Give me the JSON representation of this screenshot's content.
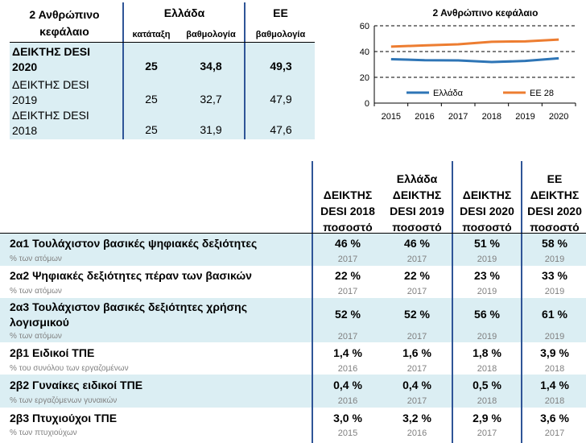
{
  "top_table": {
    "heading": "2 Ανθρώπινο κεφάλαιο",
    "group_greece": "Ελλάδα",
    "group_eu": "ΕΕ",
    "col_rank": "κατάταξη",
    "col_score_gr": "βαθμολογία",
    "col_score_eu": "βαθμολογία",
    "rows": [
      {
        "label": "ΔΕΙΚΤΗΣ DESI 2020",
        "rank": "25",
        "score": "34,8",
        "eu": "49,3"
      },
      {
        "label": "ΔΕΙΚΤΗΣ DESI 2019",
        "rank": "25",
        "score": "32,7",
        "eu": "47,9"
      },
      {
        "label": "ΔΕΙΚΤΗΣ DESI 2018",
        "rank": "25",
        "score": "31,9",
        "eu": "47,6"
      }
    ]
  },
  "colors": {
    "greece_line": "#2e75b6",
    "eu_line": "#ed7d31",
    "band": "#dbeef3",
    "divider": "#2f5597"
  },
  "chart_data": {
    "type": "line",
    "title": "2 Ανθρώπινο κεφάλαιο",
    "x": [
      "2015",
      "2016",
      "2017",
      "2018",
      "2019",
      "2020"
    ],
    "series": [
      {
        "name": "Ελλάδα",
        "values": [
          34.1,
          33.3,
          33.1,
          31.9,
          32.7,
          34.8
        ]
      },
      {
        "name": "ΕΕ 28",
        "values": [
          43.8,
          44.8,
          45.6,
          47.6,
          47.9,
          49.3
        ]
      }
    ],
    "ylim": [
      0,
      60
    ],
    "yticks": [
      "0",
      "20",
      "40",
      "60"
    ],
    "grid": true,
    "legend": "bottom"
  },
  "main_table": {
    "group_greece": "Ελλάδα",
    "headers": [
      {
        "line1": "ΔΕΙΚΤΗΣ",
        "line2": "DESI 2018",
        "unit": "ποσοστό"
      },
      {
        "line1": "ΔΕΙΚΤΗΣ",
        "line2": "DESI 2019",
        "unit": "ποσοστό"
      },
      {
        "line1": "ΔΕΙΚΤΗΣ",
        "line2": "DESI 2020",
        "unit": "ποσοστό"
      },
      {
        "line0": "ΕΕ",
        "line1": "ΔΕΙΚΤΗΣ",
        "line2": "DESI 2020",
        "unit": "ποσοστό"
      }
    ],
    "rows": [
      {
        "label": "2α1 Τουλάχιστον βασικές ψηφιακές δεξιότητες",
        "sub": "% των ατόμων",
        "values": [
          "46 %",
          "46 %",
          "51 %",
          "58 %"
        ],
        "years": [
          "2017",
          "2017",
          "2019",
          "2019"
        ]
      },
      {
        "label": "2α2 Ψηφιακές δεξιότητες πέραν των βασικών",
        "sub": "% των ατόμων",
        "values": [
          "22 %",
          "22 %",
          "23 %",
          "33 %"
        ],
        "years": [
          "2017",
          "2017",
          "2019",
          "2019"
        ]
      },
      {
        "label": "2α3 Τουλάχιστον βασικές δεξιότητες χρήσης",
        "label2": "λογισμικού",
        "sub": "% των ατόμων",
        "values": [
          "52 %",
          "52 %",
          "56 %",
          "61 %"
        ],
        "years": [
          "2017",
          "2017",
          "2019",
          "2019"
        ]
      },
      {
        "label": "2β1 Ειδικοί ΤΠΕ",
        "sub": "% του συνόλου των εργαζομένων",
        "values": [
          "1,4 %",
          "1,6 %",
          "1,8 %",
          "3,9 %"
        ],
        "years": [
          "2016",
          "2017",
          "2018",
          "2018"
        ]
      },
      {
        "label": "2β2 Γυναίκες ειδικοί ΤΠΕ",
        "sub": "% των εργαζόμενων γυναικών",
        "values": [
          "0,4 %",
          "0,4 %",
          "0,5 %",
          "1,4 %"
        ],
        "years": [
          "2016",
          "2017",
          "2018",
          "2018"
        ]
      },
      {
        "label": "2β3 Πτυχιούχοι ΤΠΕ",
        "sub": "% των πτυχιούχων",
        "values": [
          "3,0 %",
          "3,2 %",
          "2,9 %",
          "3,6 %"
        ],
        "years": [
          "2015",
          "2016",
          "2017",
          "2017"
        ]
      }
    ]
  }
}
